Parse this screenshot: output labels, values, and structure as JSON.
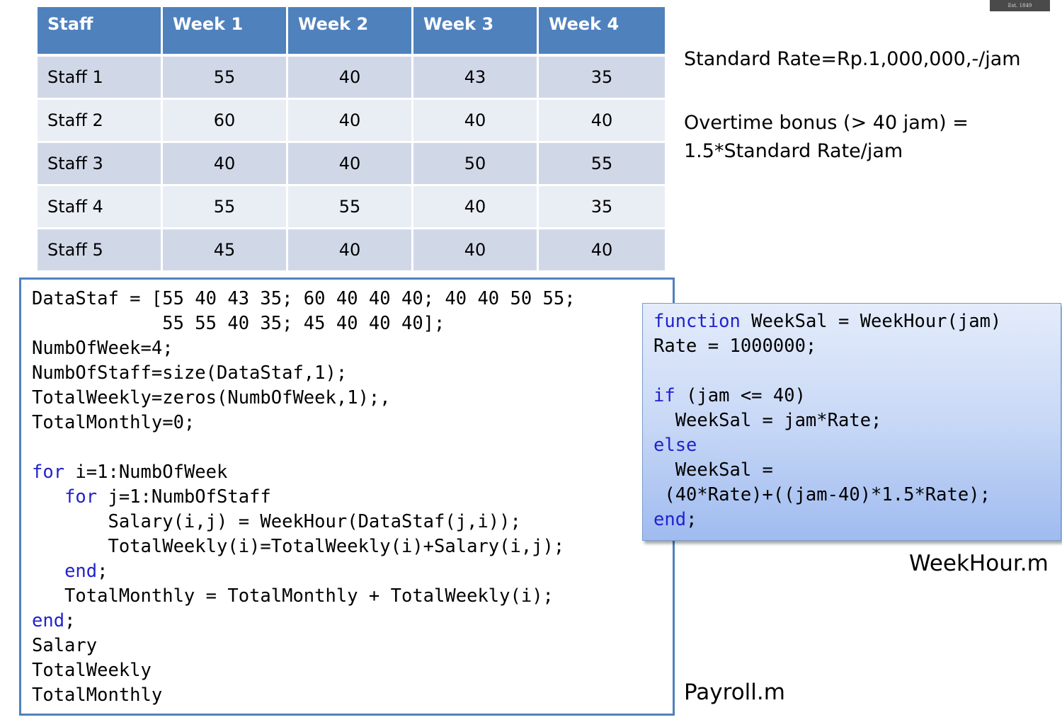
{
  "logo": {
    "text": "Est. 1849"
  },
  "table": {
    "headers": [
      "Staff",
      "Week 1",
      "Week 2",
      "Week 3",
      "Week 4"
    ],
    "rows": [
      [
        "Staff 1",
        "55",
        "40",
        "43",
        "35"
      ],
      [
        "Staff 2",
        "60",
        "40",
        "40",
        "40"
      ],
      [
        "Staff 3",
        "40",
        "40",
        "50",
        "55"
      ],
      [
        "Staff 4",
        "55",
        "55",
        "40",
        "35"
      ],
      [
        "Staff 5",
        "45",
        "40",
        "40",
        "40"
      ]
    ]
  },
  "notes": {
    "standard_rate": "Standard Rate=Rp.1,000,000,-/jam",
    "overtime_line1": "Overtime bonus (> 40 jam) =",
    "overtime_line2": "1.5*Standard Rate/jam"
  },
  "payroll_code": [
    [
      {
        "t": "DataStaf = [55 40 43 35; 60 40 40 40; 40 40 50 55;"
      }
    ],
    [
      {
        "t": "            55 55 40 35; 45 40 40 40];"
      }
    ],
    [
      {
        "t": "NumbOfWeek=4;"
      }
    ],
    [
      {
        "t": "NumbOfStaff=size(DataStaf,1);"
      }
    ],
    [
      {
        "t": "TotalWeekly=zeros(NumbOfWeek,1);,"
      }
    ],
    [
      {
        "t": "TotalMonthly=0;"
      }
    ],
    [
      {
        "t": ""
      }
    ],
    [
      {
        "t": "for",
        "k": true
      },
      {
        "t": " i=1:NumbOfWeek"
      }
    ],
    [
      {
        "t": "   "
      },
      {
        "t": "for",
        "k": true
      },
      {
        "t": " j=1:NumbOfStaff"
      }
    ],
    [
      {
        "t": "       Salary(i,j) = WeekHour(DataStaf(j,i));"
      }
    ],
    [
      {
        "t": "       TotalWeekly(i)=TotalWeekly(i)+Salary(i,j);"
      }
    ],
    [
      {
        "t": "   "
      },
      {
        "t": "end",
        "k": true
      },
      {
        "t": ";"
      }
    ],
    [
      {
        "t": "   TotalMonthly = TotalMonthly + TotalWeekly(i);"
      }
    ],
    [
      {
        "t": "end",
        "k": true
      },
      {
        "t": ";"
      }
    ],
    [
      {
        "t": "Salary"
      }
    ],
    [
      {
        "t": "TotalWeekly"
      }
    ],
    [
      {
        "t": "TotalMonthly"
      }
    ]
  ],
  "weekhour_code": [
    [
      {
        "t": "function",
        "k": true
      },
      {
        "t": " WeekSal = WeekHour(jam)"
      }
    ],
    [
      {
        "t": "Rate = 1000000;"
      }
    ],
    [
      {
        "t": ""
      }
    ],
    [
      {
        "t": "if",
        "k": true
      },
      {
        "t": " (jam <= 40)"
      }
    ],
    [
      {
        "t": "  WeekSal = jam*Rate;"
      }
    ],
    [
      {
        "t": "else",
        "k": true
      }
    ],
    [
      {
        "t": "  WeekSal ="
      }
    ],
    [
      {
        "t": " (40*Rate)+((jam-40)*1.5*Rate);"
      }
    ],
    [
      {
        "t": "end",
        "k": true
      },
      {
        "t": ";"
      }
    ]
  ],
  "captions": {
    "weekhour_file": "WeekHour.m",
    "payroll_file": "Payroll.m"
  }
}
